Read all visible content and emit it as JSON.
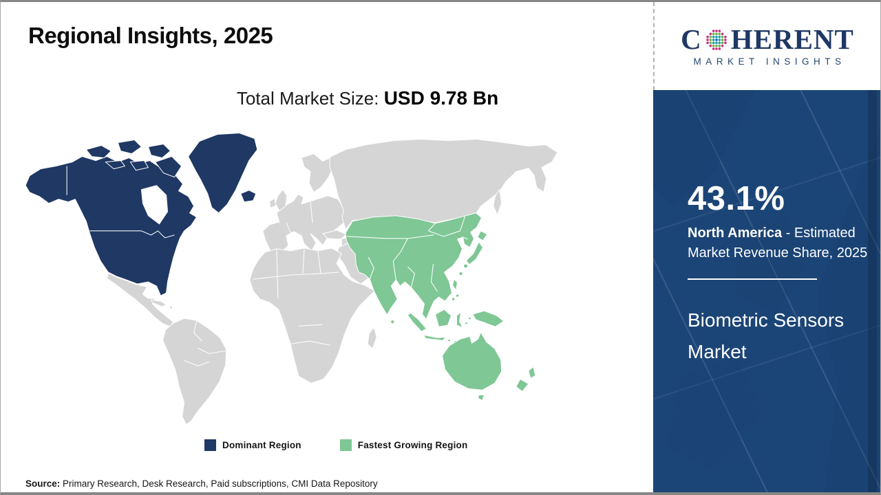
{
  "page": {
    "title": "Regional Insights, 2025",
    "total_market_label": "Total Market Size:",
    "total_market_value": "USD 9.78 Bn",
    "source_label": "Source:",
    "source_text": " Primary Research, Desk Research, Paid subscriptions, CMI Data Repository"
  },
  "logo": {
    "word_start": "C",
    "word_end": "HERENT",
    "globe_icon": "dotted-globe-icon",
    "subtitle": "MARKET INSIGHTS",
    "brand_color": "#1f3864"
  },
  "sidebar": {
    "share_value": "43.1%",
    "share_region": "North America",
    "share_description": " - Estimated Market Revenue Share, 2025",
    "market_name": "Biometric Sensors Market",
    "background_color": "#1c4577"
  },
  "legend": {
    "items": [
      {
        "label": "Dominant Region",
        "color": "#1f3864"
      },
      {
        "label": "Fastest Growing Region",
        "color": "#7fc795"
      }
    ]
  },
  "map": {
    "dominant_region": "North America",
    "fastest_growing_region": "Asia Pacific",
    "colors": {
      "dominant": "#1f3864",
      "fastest_growing": "#7fc795",
      "other": "#d5d5d5"
    }
  },
  "chart_data": {
    "type": "choropleth_map",
    "title": "Regional Insights, 2025",
    "subtitle": "Total Market Size: USD 9.78 Bn",
    "market": "Biometric Sensors Market",
    "year": 2025,
    "total_market_size_usd_bn": 9.78,
    "regions": [
      {
        "name": "North America",
        "role": "Dominant Region",
        "estimated_revenue_share_pct": 43.1,
        "color": "#1f3864"
      },
      {
        "name": "Asia Pacific",
        "role": "Fastest Growing Region",
        "color": "#7fc795"
      },
      {
        "name": "Rest of World",
        "role": "Other",
        "color": "#d5d5d5"
      }
    ],
    "legend_entries": [
      "Dominant Region",
      "Fastest Growing Region"
    ],
    "source": "Primary Research, Desk Research, Paid subscriptions, CMI Data Repository"
  }
}
